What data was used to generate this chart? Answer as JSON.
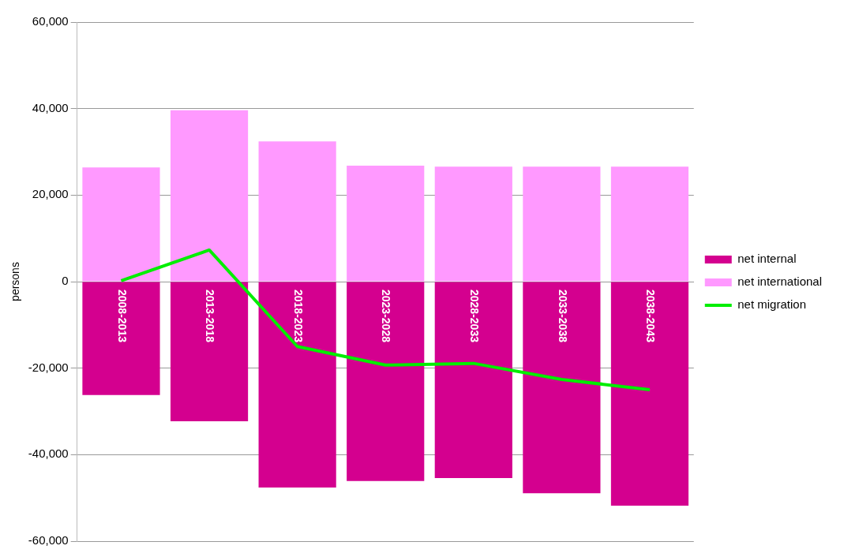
{
  "chart_data": {
    "type": "bar",
    "ylabel": "persons",
    "categories": [
      "2008-2013",
      "2013-2018",
      "2018-2023",
      "2023-2028",
      "2028-2033",
      "2033-2038",
      "2038-2043"
    ],
    "stacked": true,
    "series": [
      {
        "name": "net internal",
        "color": "#d4008f",
        "values": [
          -26200,
          -32300,
          -47600,
          -46100,
          -45400,
          -48900,
          -51800
        ]
      },
      {
        "name": "net international",
        "color": "#ff99ff",
        "values": [
          26400,
          39600,
          32400,
          26800,
          26600,
          26600,
          26600
        ]
      },
      {
        "name": "net migration",
        "type": "line",
        "color": "#00ee00",
        "values": [
          200,
          7300,
          -15000,
          -19300,
          -18900,
          -22600,
          -25000
        ]
      }
    ],
    "ylim": [
      -60000,
      60000
    ],
    "yticks": [
      {
        "value": -60000,
        "label": "-60,000"
      },
      {
        "value": -40000,
        "label": "-40,000"
      },
      {
        "value": -20000,
        "label": "-20,000"
      },
      {
        "value": 0,
        "label": "0"
      },
      {
        "value": 20000,
        "label": "20,000"
      },
      {
        "value": 40000,
        "label": "40,000"
      },
      {
        "value": 60000,
        "label": "60,000"
      }
    ],
    "grid": "y",
    "legend": "right"
  }
}
